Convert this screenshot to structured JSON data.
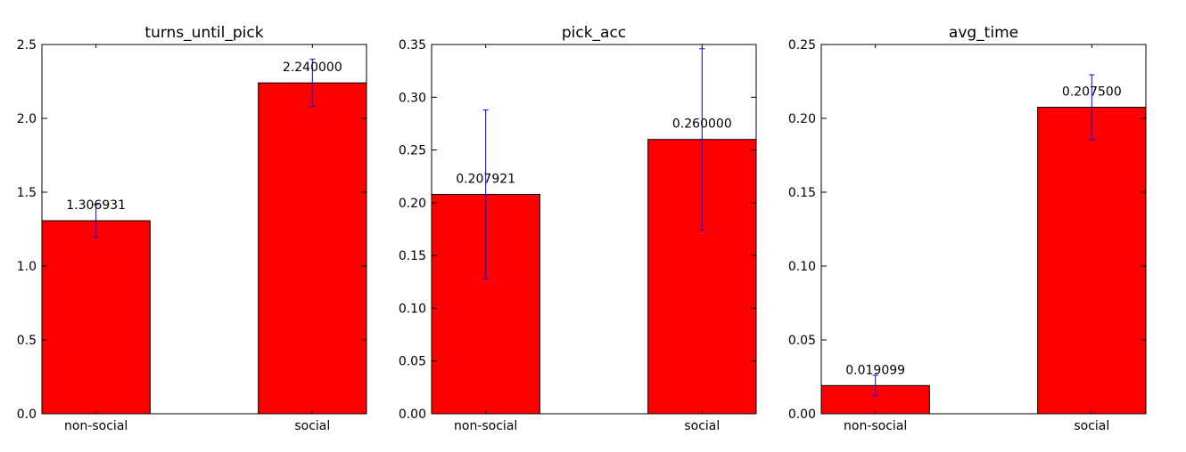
{
  "chart_data": [
    {
      "type": "bar",
      "title": "turns_until_pick",
      "categories": [
        "non-social",
        "social"
      ],
      "values": [
        1.306931,
        2.24
      ],
      "value_labels": [
        "1.306931",
        "2.240000"
      ],
      "error": [
        0.11,
        0.16
      ],
      "ylim": [
        0,
        2.5
      ],
      "yticks": [
        "0.0",
        "0.5",
        "1.0",
        "1.5",
        "2.0",
        "2.5"
      ],
      "ytick_values": [
        0,
        0.5,
        1.0,
        1.5,
        2.0,
        2.5
      ],
      "xlabel": "",
      "ylabel": "",
      "grid": false
    },
    {
      "type": "bar",
      "title": "pick_acc",
      "categories": [
        "non-social",
        "social"
      ],
      "values": [
        0.207921,
        0.26
      ],
      "value_labels": [
        "0.207921",
        "0.260000"
      ],
      "error": [
        0.08,
        0.086
      ],
      "ylim": [
        0,
        0.35
      ],
      "yticks": [
        "0.00",
        "0.05",
        "0.10",
        "0.15",
        "0.20",
        "0.25",
        "0.30",
        "0.35"
      ],
      "ytick_values": [
        0,
        0.05,
        0.1,
        0.15,
        0.2,
        0.25,
        0.3,
        0.35
      ],
      "xlabel": "",
      "ylabel": "",
      "grid": false
    },
    {
      "type": "bar",
      "title": "avg_time",
      "categories": [
        "non-social",
        "social"
      ],
      "values": [
        0.019099,
        0.2075
      ],
      "value_labels": [
        "0.019099",
        "0.207500"
      ],
      "error": [
        0.007,
        0.022
      ],
      "ylim": [
        0,
        0.25
      ],
      "yticks": [
        "0.00",
        "0.05",
        "0.10",
        "0.15",
        "0.20",
        "0.25"
      ],
      "ytick_values": [
        0,
        0.05,
        0.1,
        0.15,
        0.2,
        0.25
      ],
      "xlabel": "",
      "ylabel": "",
      "grid": false
    }
  ],
  "colors": {
    "bar_fill": "#ff0000",
    "bar_edge": "#000000",
    "error_bar": "#0000ff",
    "axes": "#000000"
  }
}
